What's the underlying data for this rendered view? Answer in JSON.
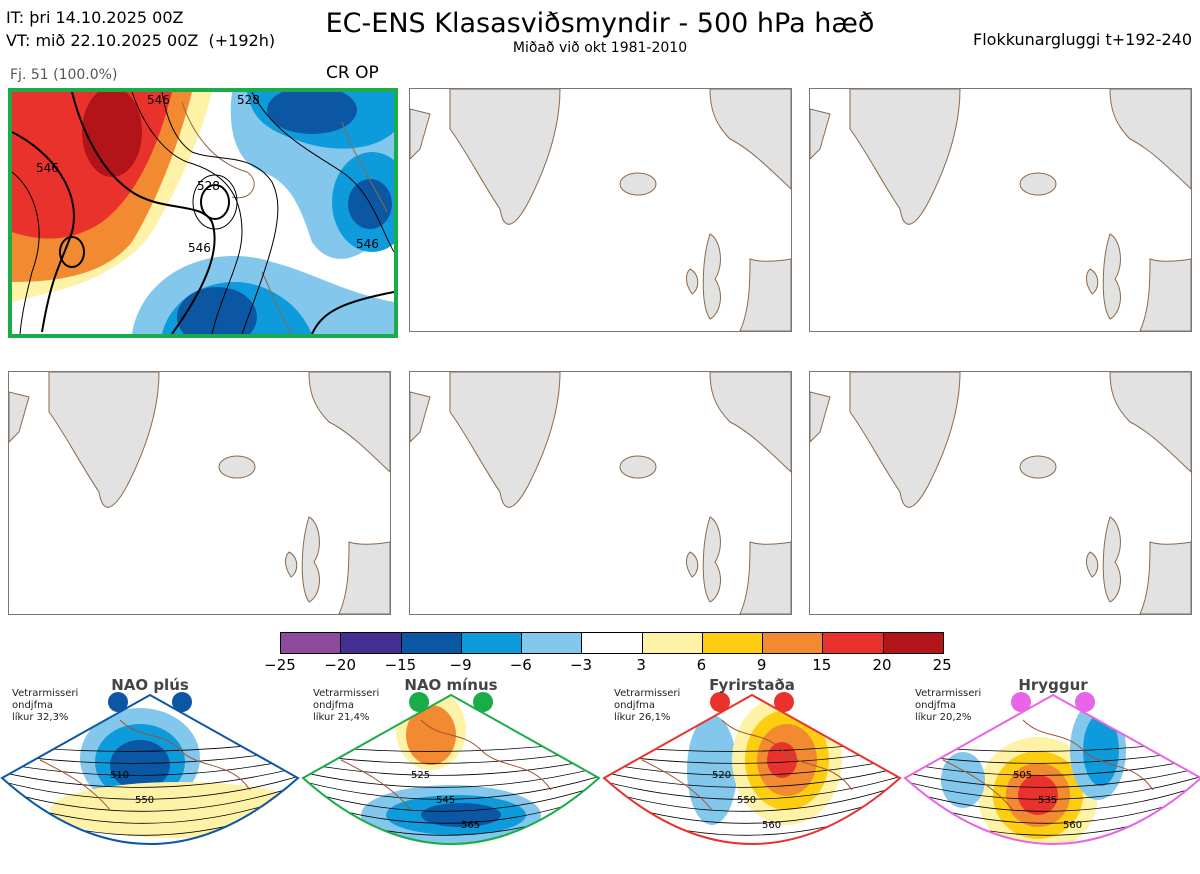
{
  "header": {
    "it_line": "IT: þri 14.10.2025 00Z",
    "vt_line": "VT: mið 22.10.2025 00Z  (+192h)",
    "title": "EC-ENS Klasasviðsmyndir - 500 hPa hæð",
    "subtitle": "Miðað við okt 1981-2010",
    "window": "Flokkunargluggi t+192-240"
  },
  "cluster": {
    "count_label": "Fj. 51 (100.0%)",
    "code": "CR OP",
    "highlight_color": "#1aac48",
    "contour_labels": [
      "546",
      "528",
      "546",
      "546",
      "528",
      "546"
    ]
  },
  "colorbar": {
    "ticks": [
      "−25",
      "−20",
      "−15",
      "−9",
      "−6",
      "−3",
      "3",
      "6",
      "9",
      "15",
      "20",
      "25"
    ],
    "colors": [
      "#8d4a9e",
      "#452f93",
      "#0b57a4",
      "#0e9bdb",
      "#83c7ec",
      "#ffffff",
      "#fdf2a6",
      "#fccd10",
      "#f28a32",
      "#e8322b",
      "#b2141a"
    ]
  },
  "regimes": [
    {
      "name": "NAO plús",
      "note": "Vetrarmisseri\nondjfma\nlíkur 32,3%",
      "color": "#0b57a4",
      "labels": [
        "510",
        "550"
      ]
    },
    {
      "name": "NAO mínus",
      "note": "Vetrarmisseri\nondjfma\nlíkur 21,4%",
      "color": "#1aac48",
      "labels": [
        "525",
        "545",
        "565"
      ]
    },
    {
      "name": "Fyrirstaða",
      "note": "Vetrarmisseri\nondjfma\nlíkur 26,1%",
      "color": "#e8322b",
      "labels": [
        "520",
        "550",
        "560"
      ]
    },
    {
      "name": "Hryggur",
      "note": "Vetrarmisseri\nondjfma\nlíkur 20,2%",
      "color": "#e864e8",
      "labels": [
        "505",
        "535",
        "560"
      ]
    }
  ]
}
